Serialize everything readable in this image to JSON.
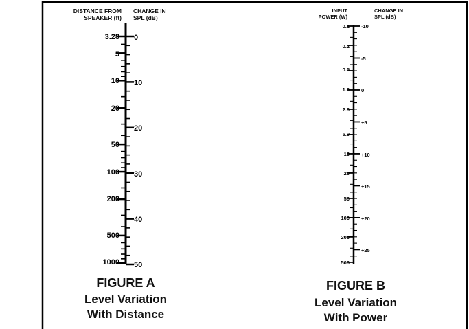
{
  "figures": [
    {
      "left_header_line1": "DISTANCE FROM",
      "left_header_line2": "SPEAKER (ft)",
      "right_header_line1": "CHANGE IN",
      "right_header_line2": "SPL (dB)",
      "label": "FIGURE A",
      "title_line1": "Level Variation",
      "title_line2": "With Distance",
      "left_labels": [
        "3.28",
        "5",
        "10",
        "20",
        "50",
        "100",
        "200",
        "500",
        "1000"
      ],
      "right_labels": [
        "0",
        "10",
        "20",
        "30",
        "40",
        "50"
      ]
    },
    {
      "left_header_line1": "INPUT",
      "left_header_line2": "POWER (W)",
      "right_header_line1": "CHANGE IN",
      "right_header_line2": "SPL (dB)",
      "label": "FIGURE B",
      "title_line1": "Level Variation",
      "title_line2": "With Power",
      "left_labels": [
        "0.1",
        "0.2",
        "0.5",
        "1.0",
        "2.0",
        "5.0",
        "10",
        "20",
        "50",
        "100",
        "200",
        "500"
      ],
      "right_labels": [
        "-10",
        "-5",
        "0",
        "+5",
        "+10",
        "+15",
        "+20",
        "+25"
      ]
    }
  ]
}
